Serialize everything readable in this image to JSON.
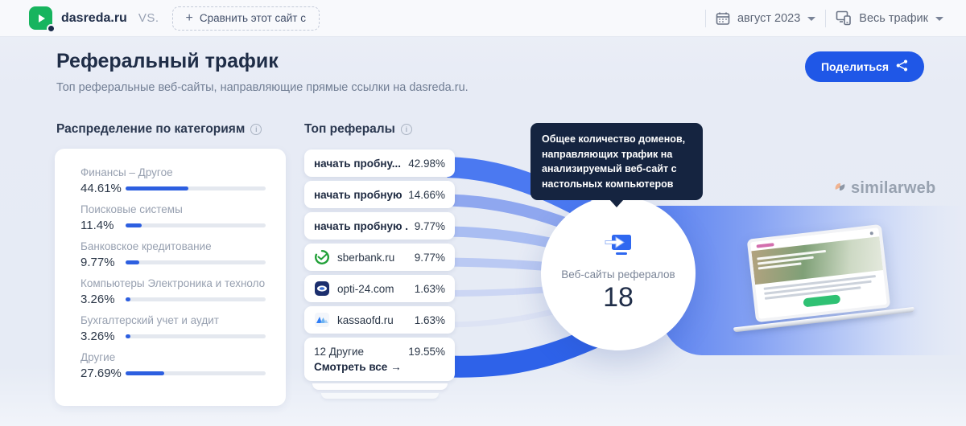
{
  "topbar": {
    "site": "dasreda.ru",
    "vs_label": "VS.",
    "compare_plus": "+",
    "compare_button": "Сравнить этот сайт с",
    "date_selector": "август 2023",
    "traffic_selector": "Весь трафик"
  },
  "header": {
    "title": "Реферальный трафик",
    "subtitle": "Топ реферальные веб-сайты, направляющие прямые ссылки на dasreda.ru.",
    "share_button": "Поделиться"
  },
  "categories": {
    "title": "Распределение по категориям",
    "items": [
      {
        "label": "Финансы – Другое",
        "value": "44.61%",
        "pct": 44.61
      },
      {
        "label": "Поисковые системы",
        "value": "11.4%",
        "pct": 11.4
      },
      {
        "label": "Банковское кредитование",
        "value": "9.77%",
        "pct": 9.77
      },
      {
        "label": "Компьютеры Электроника и техноло...",
        "value": "3.26%",
        "pct": 3.26
      },
      {
        "label": "Бухгалтерский учет и аудит",
        "value": "3.26%",
        "pct": 3.26
      },
      {
        "label": "Другие",
        "value": "27.69%",
        "pct": 27.69
      }
    ]
  },
  "referrals": {
    "title": "Топ рефералы",
    "items": [
      {
        "label": "начать пробну...",
        "value": "42.98%",
        "pct": 42.98,
        "bold": true,
        "favicon": "none"
      },
      {
        "label": "начать пробную...",
        "value": "14.66%",
        "pct": 14.66,
        "bold": true,
        "favicon": "none"
      },
      {
        "label": "начать пробную ...",
        "value": "9.77%",
        "pct": 9.77,
        "bold": true,
        "favicon": "none"
      },
      {
        "label": "sberbank.ru",
        "value": "9.77%",
        "pct": 9.77,
        "bold": false,
        "favicon": "sberbank"
      },
      {
        "label": "opti-24.com",
        "value": "1.63%",
        "pct": 1.63,
        "bold": false,
        "favicon": "opti24"
      },
      {
        "label": "kassaofd.ru",
        "value": "1.63%",
        "pct": 1.63,
        "bold": false,
        "favicon": "kassaofd"
      }
    ],
    "others": {
      "label": "12 Другие",
      "value": "19.55%",
      "pct": 19.55,
      "see_all": "Смотреть все",
      "arrow": "→"
    }
  },
  "tooltip": {
    "text": "Общее количество доменов, направляющих трафик на анализируемый веб-сайт с настольных компьютеров"
  },
  "hub": {
    "label": "Веб-сайты рефералов",
    "count": "18"
  },
  "watermark": {
    "text": "similarweb"
  },
  "colors": {
    "accent_blue": "#1f57e7",
    "bar_fill": "#2d5fe0",
    "logo_green": "#17b45e",
    "tooltip_bg": "#152440",
    "ribbon_strong": "#4b79f1",
    "ribbon_bottom": "#2e62e9"
  }
}
